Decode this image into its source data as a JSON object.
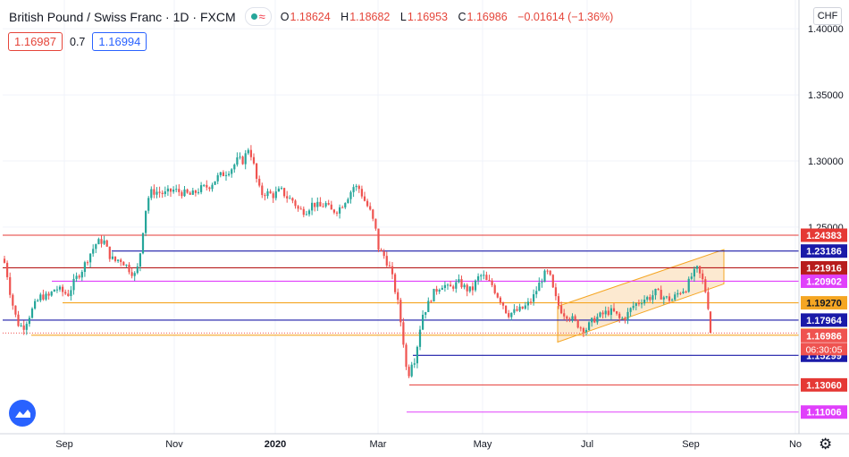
{
  "header": {
    "symbol_title": "British Pound / Swiss Franc · 1D · FXCM",
    "open_label": "O",
    "open": "1.18624",
    "high_label": "H",
    "high": "1.18682",
    "low_label": "L",
    "low": "1.16953",
    "close_label": "C",
    "close": "1.16986",
    "change": "−0.01614 (−1.36%)",
    "bid": "1.16987",
    "spread": "0.7",
    "ask": "1.16994",
    "currency": "CHF"
  },
  "icons": {
    "status": "green-dot-icon",
    "wave": "wave-icon",
    "logo": "tradingview-cloud-icon",
    "settings": "gear-icon"
  },
  "colors": {
    "up": "#26a69a",
    "down": "#ef5350",
    "red_line": "#e53935",
    "dark_red_line": "#b71c1c",
    "blue_line": "#1a1aa8",
    "magenta_line": "#e040fb",
    "orange_line": "#f5a623",
    "channel_fill": "#fbe3c4",
    "current_price": "#ef5350"
  },
  "chart_data": {
    "type": "candlestick",
    "title": "British Pound / Swiss Franc · 1D · FXCM",
    "x_ticks": [
      "Sep",
      "Nov",
      "2020",
      "Mar",
      "May",
      "Jul",
      "Sep",
      "No"
    ],
    "y_ticks": [
      "1.40000",
      "1.35000",
      "1.30000",
      "1.25000"
    ],
    "ylim": [
      1.095,
      1.415
    ],
    "horizontal_levels": [
      {
        "label": "1.24383",
        "value": 1.24383,
        "color": "#e53935"
      },
      {
        "label": "1.23186",
        "value": 1.23186,
        "color": "#1a1aa8"
      },
      {
        "label": "1.21916",
        "value": 1.21916,
        "color": "#b71c1c"
      },
      {
        "label": "1.20902",
        "value": 1.20902,
        "color": "#e040fb"
      },
      {
        "label": "1.19270",
        "value": 1.1927,
        "color": "#f5a623"
      },
      {
        "label": "1.17964",
        "value": 1.17964,
        "color": "#1a1aa8"
      },
      {
        "label": "1.16822",
        "value": 1.16822,
        "color": "#f5a623"
      },
      {
        "label": "1.15299",
        "value": 1.15299,
        "color": "#1a1aa8"
      },
      {
        "label": "1.13060",
        "value": 1.1306,
        "color": "#e53935"
      },
      {
        "label": "1.11006",
        "value": 1.11006,
        "color": "#e040fb"
      }
    ],
    "current_price": {
      "label": "1.16986",
      "value": 1.16986,
      "countdown": "06:30:05"
    },
    "channel": {
      "start": {
        "x": "Jun",
        "y_lower": 1.163,
        "y_upper": 1.19
      },
      "end": {
        "x": "Sep",
        "y_lower": 1.207,
        "y_upper": 1.233
      }
    },
    "price_path": [
      [
        0,
        1.226
      ],
      [
        4,
        1.214
      ],
      [
        8,
        1.198
      ],
      [
        12,
        1.186
      ],
      [
        16,
        1.177
      ],
      [
        22,
        1.174
      ],
      [
        28,
        1.182
      ],
      [
        34,
        1.19
      ],
      [
        42,
        1.198
      ],
      [
        50,
        1.197
      ],
      [
        58,
        1.204
      ],
      [
        66,
        1.201
      ],
      [
        72,
        1.199
      ],
      [
        80,
        1.21
      ],
      [
        88,
        1.218
      ],
      [
        96,
        1.229
      ],
      [
        104,
        1.238
      ],
      [
        112,
        1.24
      ],
      [
        118,
        1.229
      ],
      [
        124,
        1.224
      ],
      [
        130,
        1.226
      ],
      [
        136,
        1.222
      ],
      [
        142,
        1.217
      ],
      [
        148,
        1.213
      ],
      [
        152,
        1.226
      ],
      [
        156,
        1.248
      ],
      [
        160,
        1.268
      ],
      [
        164,
        1.276
      ],
      [
        170,
        1.277
      ],
      [
        180,
        1.275
      ],
      [
        190,
        1.278
      ],
      [
        200,
        1.276
      ],
      [
        210,
        1.274
      ],
      [
        220,
        1.279
      ],
      [
        230,
        1.281
      ],
      [
        240,
        1.288
      ],
      [
        248,
        1.291
      ],
      [
        256,
        1.295
      ],
      [
        262,
        1.301
      ],
      [
        268,
        1.3
      ],
      [
        274,
        1.31
      ],
      [
        278,
        1.303
      ],
      [
        284,
        1.283
      ],
      [
        288,
        1.275
      ],
      [
        294,
        1.276
      ],
      [
        302,
        1.274
      ],
      [
        310,
        1.278
      ],
      [
        318,
        1.272
      ],
      [
        324,
        1.27
      ],
      [
        330,
        1.263
      ],
      [
        338,
        1.262
      ],
      [
        346,
        1.268
      ],
      [
        354,
        1.265
      ],
      [
        360,
        1.268
      ],
      [
        366,
        1.262
      ],
      [
        374,
        1.263
      ],
      [
        380,
        1.268
      ],
      [
        386,
        1.274
      ],
      [
        392,
        1.281
      ],
      [
        398,
        1.279
      ],
      [
        404,
        1.27
      ],
      [
        410,
        1.262
      ],
      [
        416,
        1.249
      ],
      [
        420,
        1.232
      ],
      [
        426,
        1.228
      ],
      [
        432,
        1.219
      ],
      [
        436,
        1.209
      ],
      [
        442,
        1.19
      ],
      [
        448,
        1.16
      ],
      [
        452,
        1.134
      ],
      [
        456,
        1.148
      ],
      [
        460,
        1.15
      ],
      [
        464,
        1.165
      ],
      [
        468,
        1.183
      ],
      [
        474,
        1.19
      ],
      [
        480,
        1.199
      ],
      [
        486,
        1.204
      ],
      [
        492,
        1.207
      ],
      [
        498,
        1.203
      ],
      [
        504,
        1.206
      ],
      [
        510,
        1.208
      ],
      [
        518,
        1.203
      ],
      [
        524,
        1.202
      ],
      [
        530,
        1.211
      ],
      [
        536,
        1.214
      ],
      [
        540,
        1.209
      ],
      [
        546,
        1.207
      ],
      [
        552,
        1.199
      ],
      [
        558,
        1.193
      ],
      [
        564,
        1.184
      ],
      [
        572,
        1.186
      ],
      [
        580,
        1.188
      ],
      [
        586,
        1.191
      ],
      [
        592,
        1.196
      ],
      [
        598,
        1.205
      ],
      [
        604,
        1.213
      ],
      [
        608,
        1.216
      ],
      [
        612,
        1.211
      ],
      [
        616,
        1.199
      ],
      [
        620,
        1.192
      ],
      [
        626,
        1.185
      ],
      [
        632,
        1.183
      ],
      [
        640,
        1.178
      ],
      [
        646,
        1.174
      ],
      [
        652,
        1.173
      ],
      [
        660,
        1.18
      ],
      [
        668,
        1.183
      ],
      [
        676,
        1.186
      ],
      [
        682,
        1.186
      ],
      [
        690,
        1.18
      ],
      [
        696,
        1.182
      ],
      [
        704,
        1.19
      ],
      [
        712,
        1.194
      ],
      [
        718,
        1.196
      ],
      [
        724,
        1.197
      ],
      [
        730,
        1.201
      ],
      [
        736,
        1.198
      ],
      [
        742,
        1.196
      ],
      [
        748,
        1.195
      ],
      [
        756,
        1.201
      ],
      [
        764,
        1.204
      ],
      [
        770,
        1.213
      ],
      [
        776,
        1.218
      ],
      [
        782,
        1.21
      ],
      [
        786,
        1.2
      ],
      [
        790,
        1.184
      ],
      [
        794,
        1.17
      ]
    ]
  }
}
